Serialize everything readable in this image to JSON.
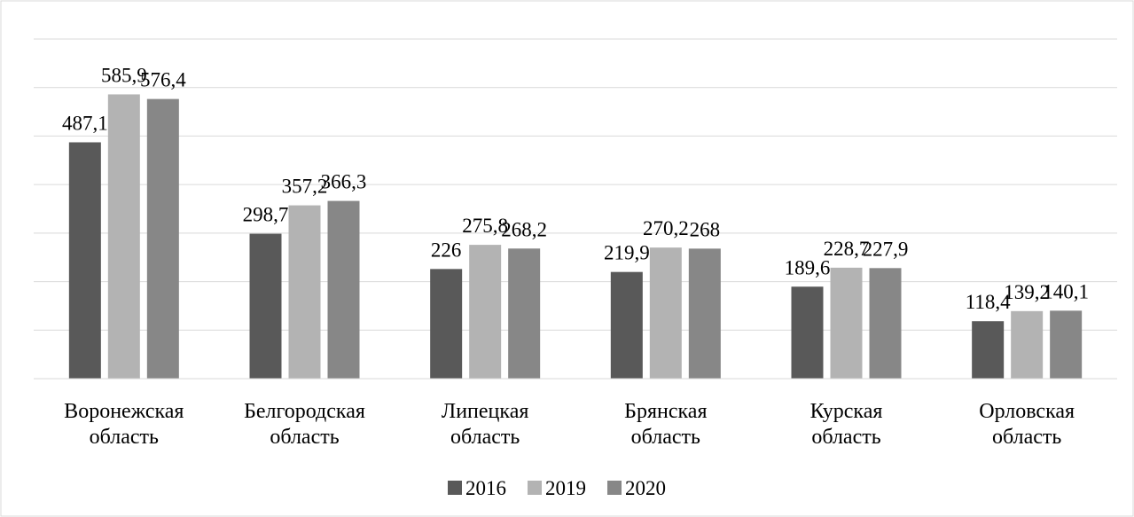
{
  "chart_data": {
    "type": "bar",
    "categories": [
      "Воронежская область",
      "Белгородская область",
      "Липецкая область",
      "Брянская область",
      "Курская область",
      "Орловская область"
    ],
    "series": [
      {
        "name": "2016",
        "color": "#595959",
        "values": [
          487.1,
          298.7,
          226,
          219.9,
          189.6,
          118.4
        ],
        "value_labels": [
          "487,1",
          "298,7",
          "226",
          "219,9",
          "189,6",
          "118,4"
        ]
      },
      {
        "name": "2019",
        "color": "#b3b3b3",
        "values": [
          585.9,
          357.2,
          275.8,
          270.2,
          228.7,
          139.2
        ],
        "value_labels": [
          "585,9",
          "357,2",
          "275,8",
          "270,2",
          "228,7",
          "139,2"
        ]
      },
      {
        "name": "2020",
        "color": "#878787",
        "values": [
          576.4,
          366.3,
          268.2,
          268,
          227.9,
          140.1
        ],
        "value_labels": [
          "576,4",
          "366,3",
          "268,2",
          "268",
          "227,9",
          "140,1"
        ]
      }
    ],
    "ylim": [
      0,
      700
    ],
    "yticks": [
      0,
      100,
      200,
      300,
      400,
      500,
      600,
      700
    ],
    "grid": true,
    "legend": "bottom"
  }
}
